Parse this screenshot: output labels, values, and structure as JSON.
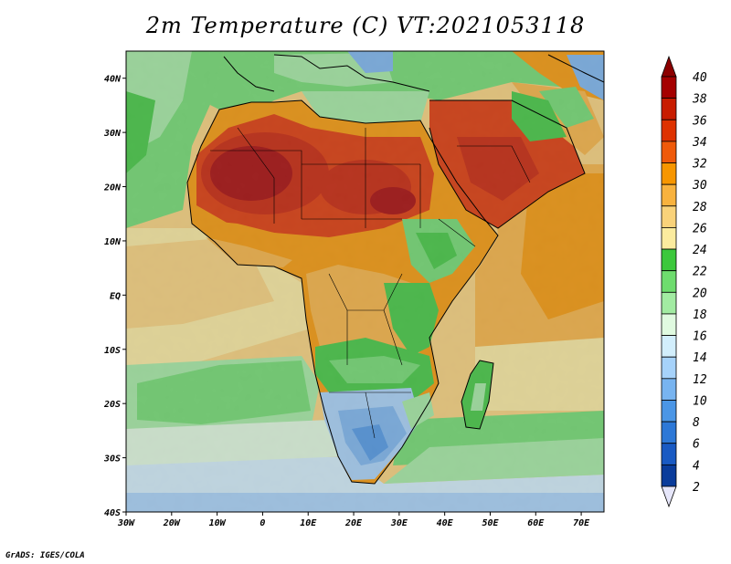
{
  "title": "2m Temperature (C) VT:2021053118",
  "footer": "GrADS: IGES/COLA",
  "map": {
    "lon_range": [
      -30,
      75
    ],
    "lat_range": [
      -40,
      45
    ],
    "lon_ticks": [
      {
        "value": -30,
        "label": "30W"
      },
      {
        "value": -20,
        "label": "20W"
      },
      {
        "value": -10,
        "label": "10W"
      },
      {
        "value": 0,
        "label": "0"
      },
      {
        "value": 10,
        "label": "10E"
      },
      {
        "value": 20,
        "label": "20E"
      },
      {
        "value": 30,
        "label": "30E"
      },
      {
        "value": 40,
        "label": "40E"
      },
      {
        "value": 50,
        "label": "50E"
      },
      {
        "value": 60,
        "label": "60E"
      },
      {
        "value": 70,
        "label": "70E"
      }
    ],
    "lat_ticks": [
      {
        "value": 40,
        "label": "40N"
      },
      {
        "value": 30,
        "label": "30N"
      },
      {
        "value": 20,
        "label": "20N"
      },
      {
        "value": 10,
        "label": "10N"
      },
      {
        "value": 0,
        "label": "EQ"
      },
      {
        "value": -10,
        "label": "10S"
      },
      {
        "value": -20,
        "label": "20S"
      },
      {
        "value": -30,
        "label": "30S"
      },
      {
        "value": -40,
        "label": "40S"
      }
    ]
  },
  "colorbar": {
    "levels": [
      {
        "label": "40",
        "color": "#a50000"
      },
      {
        "label": "38",
        "color": "#c81c00"
      },
      {
        "label": "36",
        "color": "#de3200"
      },
      {
        "label": "34",
        "color": "#ef5a0a"
      },
      {
        "label": "32",
        "color": "#f79600"
      },
      {
        "label": "30",
        "color": "#f8b23e"
      },
      {
        "label": "28",
        "color": "#f9d27a"
      },
      {
        "label": "26",
        "color": "#fbeb9e"
      },
      {
        "label": "24",
        "color": "#3cc83c"
      },
      {
        "label": "22",
        "color": "#6edc6e"
      },
      {
        "label": "20",
        "color": "#a2eba2"
      },
      {
        "label": "18",
        "color": "#e0fae0"
      },
      {
        "label": "16",
        "color": "#d2eefc"
      },
      {
        "label": "14",
        "color": "#a6d2fa"
      },
      {
        "label": "12",
        "color": "#78b4f0"
      },
      {
        "label": "10",
        "color": "#4b96e6"
      },
      {
        "label": "8",
        "color": "#2d78d7"
      },
      {
        "label": "6",
        "color": "#195ac3"
      },
      {
        "label": "4",
        "color": "#0a3c9b"
      },
      {
        "label": "2",
        "color": "#0a1e78"
      }
    ],
    "top_arrow_color": "#8c0000",
    "bottom_arrow_color": "#e6e6fa"
  }
}
